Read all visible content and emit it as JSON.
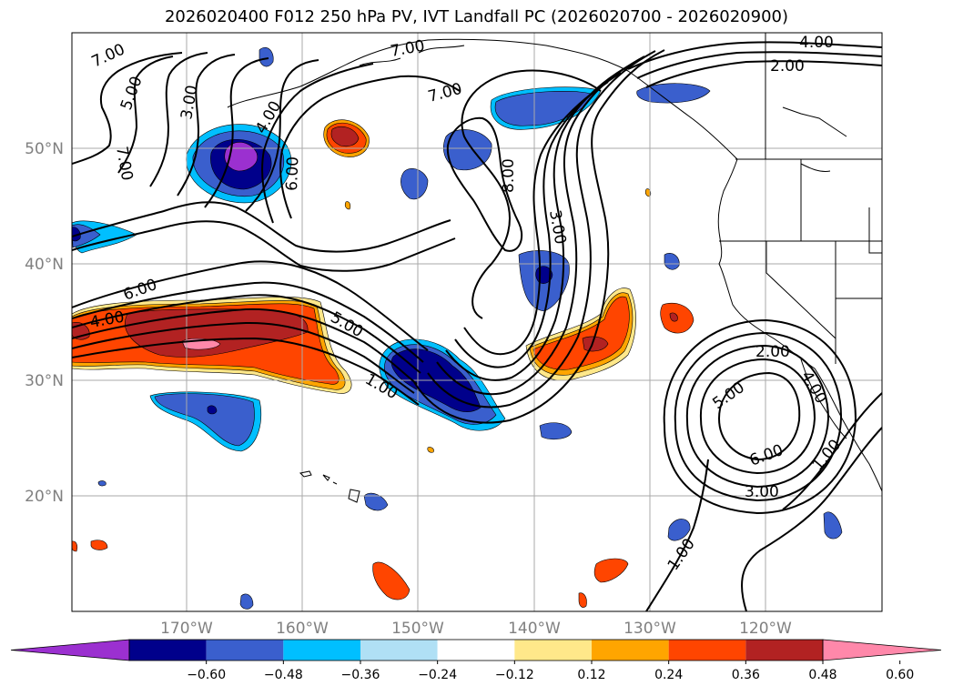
{
  "title": "2026020400 F012 250 hPa PV, IVT Landfall PC (2026020700 - 2026020900)",
  "lat_labels": [
    "50°N",
    "40°N",
    "30°N",
    "20°N"
  ],
  "lon_labels": [
    "170°W",
    "160°W",
    "150°W",
    "140°W",
    "130°W",
    "120°W"
  ],
  "contour_labels": [
    "7.00",
    "5.00",
    "3.00",
    "4.00",
    "7.00",
    "7.00",
    "6.00",
    "7.00",
    "8.00",
    "3.00",
    "4.00",
    "2.00",
    "6.00",
    "4.00",
    "5.00",
    "1.00",
    "2.00",
    "4.00",
    "5.00",
    "6.00",
    "3.00",
    "1.00",
    "1.00"
  ],
  "colorbar": {
    "ticks": [
      "−0.60",
      "−0.48",
      "−0.36",
      "−0.24",
      "−0.12",
      "0.12",
      "0.24",
      "0.36",
      "0.48",
      "0.60"
    ],
    "colors": [
      "#9b30d0",
      "#00008b",
      "#3a5fcd",
      "#00bfff",
      "#b0e0f5",
      "#ffffff",
      "#ffe88a",
      "#ffa500",
      "#ff4500",
      "#b22222",
      "#ff88aa"
    ]
  }
}
